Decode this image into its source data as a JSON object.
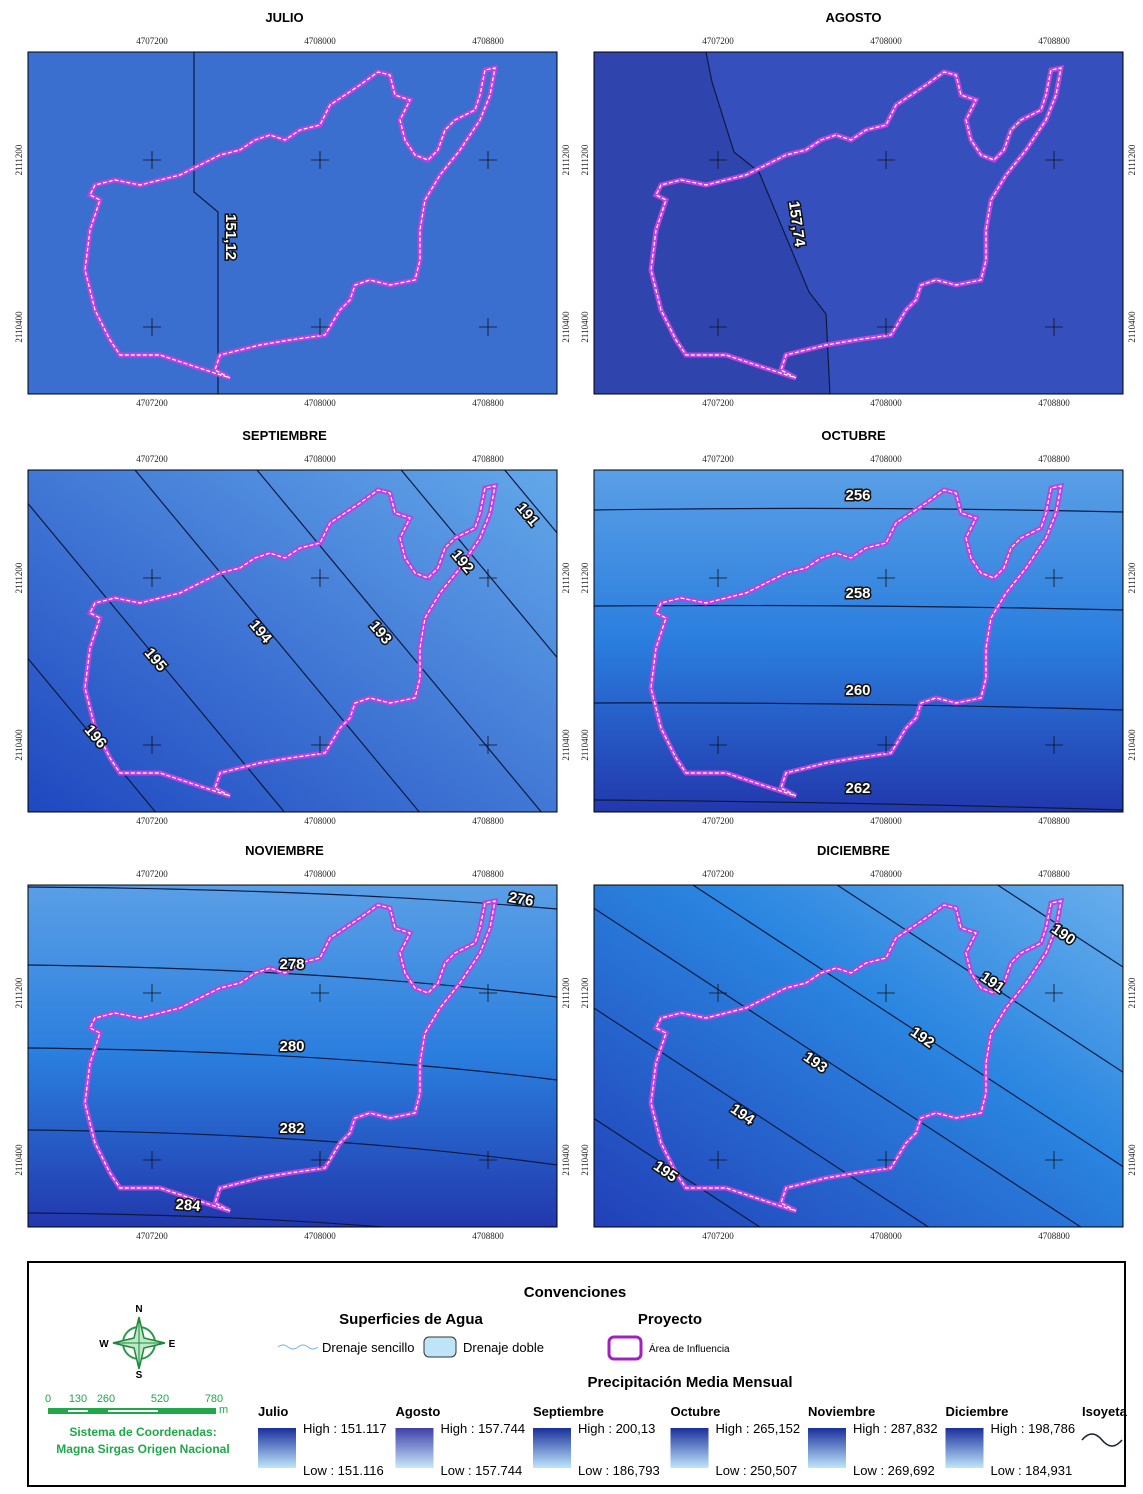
{
  "panels": [
    {
      "title": "JULIO",
      "x_ticks": [
        "4707200",
        "4708000",
        "4708800"
      ],
      "y_ticks": [
        "2111200",
        "2110400"
      ],
      "isolines": [
        "151,12"
      ]
    },
    {
      "title": "AGOSTO",
      "x_ticks": [
        "4707200",
        "4708000",
        "4708800"
      ],
      "y_ticks": [
        "2111200",
        "2110400"
      ],
      "isolines": [
        "157,74"
      ]
    },
    {
      "title": "SEPTIEMBRE",
      "x_ticks": [
        "4707200",
        "4708000",
        "4708800"
      ],
      "y_ticks": [
        "2111200",
        "2110400"
      ],
      "isolines": [
        "191",
        "192",
        "193",
        "194",
        "195",
        "196"
      ]
    },
    {
      "title": "OCTUBRE",
      "x_ticks": [
        "4707200",
        "4708000",
        "4708800"
      ],
      "y_ticks": [
        "2111200",
        "2110400"
      ],
      "isolines": [
        "256",
        "258",
        "260",
        "262"
      ]
    },
    {
      "title": "NOVIEMBRE",
      "x_ticks": [
        "4707200",
        "4708000",
        "4708800"
      ],
      "y_ticks": [
        "2111200",
        "2110400"
      ],
      "isolines": [
        "276",
        "278",
        "280",
        "282",
        "284"
      ]
    },
    {
      "title": "DICIEMBRE",
      "x_ticks": [
        "4707200",
        "4708000",
        "4708800"
      ],
      "y_ticks": [
        "2111200",
        "2110400"
      ],
      "isolines": [
        "190",
        "191",
        "192",
        "193",
        "194",
        "195"
      ]
    }
  ],
  "legend": {
    "title": "Convenciones",
    "water": {
      "title": "Superficies de Agua",
      "items": [
        "Drenaje sencillo",
        "Drenaje doble"
      ]
    },
    "project": {
      "title": "Proyecto",
      "item": "Área de Influencia"
    },
    "precip": {
      "title": "Precipitación Media Mensual",
      "months": [
        {
          "name": "Julio",
          "high": "High : 151.117",
          "low": "Low : 151.116"
        },
        {
          "name": "Agosto",
          "high": "High : 157.744",
          "low": "Low : 157.744"
        },
        {
          "name": "Septiembre",
          "high": "High : 200,13",
          "low": "Low : 186,793"
        },
        {
          "name": "Octubre",
          "high": "High : 265,152",
          "low": "Low : 250,507"
        },
        {
          "name": "Noviembre",
          "high": "High : 287,832",
          "low": "Low : 269,692"
        },
        {
          "name": "Diciembre",
          "high": "High : 198,786",
          "low": "Low : 184,931"
        }
      ],
      "isoline": "Isoyeta"
    },
    "compass": [
      "N",
      "S",
      "E",
      "W"
    ],
    "scale": [
      "0",
      "130",
      "260",
      "520",
      "780",
      "m"
    ],
    "crs": [
      "Sistema de Coordenadas:",
      "Magna Sirgas Origen Nacional"
    ]
  }
}
